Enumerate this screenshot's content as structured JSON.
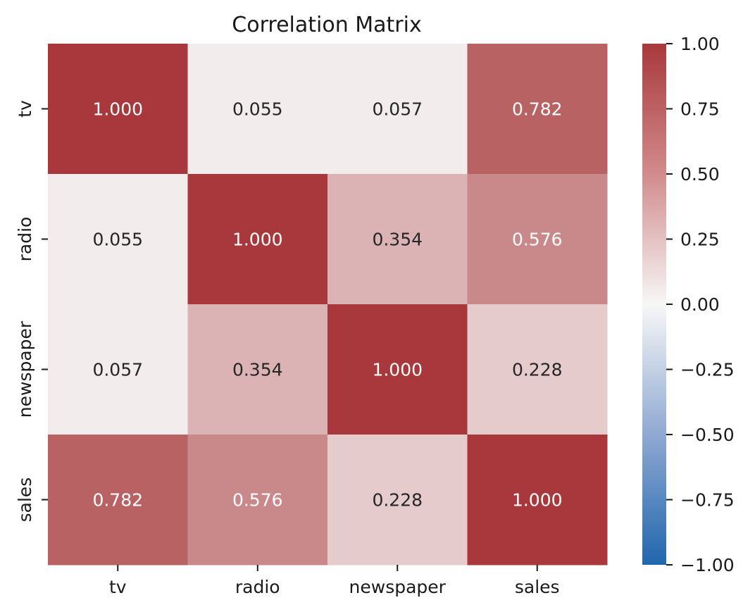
{
  "chart_data": {
    "type": "heatmap",
    "title": "Correlation Matrix",
    "x_labels": [
      "tv",
      "radio",
      "newspaper",
      "sales"
    ],
    "y_labels": [
      "tv",
      "radio",
      "newspaper",
      "sales"
    ],
    "values": [
      [
        1.0,
        0.055,
        0.057,
        0.782
      ],
      [
        0.055,
        1.0,
        0.354,
        0.576
      ],
      [
        0.057,
        0.354,
        1.0,
        0.228
      ],
      [
        0.782,
        0.576,
        0.228,
        1.0
      ]
    ],
    "cell_labels": [
      [
        "1.000",
        "0.055",
        "0.057",
        "0.782"
      ],
      [
        "0.055",
        "1.000",
        "0.354",
        "0.576"
      ],
      [
        "0.057",
        "0.354",
        "1.000",
        "0.228"
      ],
      [
        "0.782",
        "0.576",
        "0.228",
        "1.000"
      ]
    ],
    "colorbar": {
      "range": [
        -1.0,
        1.0
      ],
      "ticks": [
        1.0,
        0.75,
        0.5,
        0.25,
        0.0,
        -0.25,
        -0.5,
        -0.75,
        -1.0
      ],
      "tick_labels": [
        "1.00",
        "0.75",
        "0.50",
        "0.25",
        "0.00",
        "−0.25",
        "−0.50",
        "−0.75",
        "−1.00"
      ],
      "colormap": "diverging blue-white-red",
      "color_low": "#2166ac",
      "color_mid": "#f7f7f7",
      "color_high": "#a8383b"
    },
    "legend": "colorbar right"
  }
}
